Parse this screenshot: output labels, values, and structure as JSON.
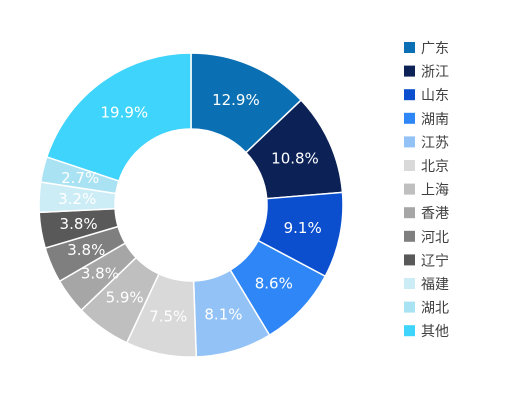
{
  "chart_data": {
    "type": "pie",
    "variant": "donut",
    "title": "",
    "legend_position": "right",
    "slices": [
      {
        "label": "广东",
        "value": 12.9,
        "display": "12.9%",
        "color": "#0a70b3",
        "label_color": "#ffffff"
      },
      {
        "label": "浙江",
        "value": 10.8,
        "display": "10.8%",
        "color": "#0c2257",
        "label_color": "#ffffff"
      },
      {
        "label": "山东",
        "value": 9.1,
        "display": "9.1%",
        "color": "#0b4fcf",
        "label_color": "#ffffff"
      },
      {
        "label": "湖南",
        "value": 8.6,
        "display": "8.6%",
        "color": "#2f86f6",
        "label_color": "#ffffff"
      },
      {
        "label": "江苏",
        "value": 8.1,
        "display": "8.1%",
        "color": "#93c2f7",
        "label_color": "#ffffff"
      },
      {
        "label": "北京",
        "value": 7.5,
        "display": "7.5%",
        "color": "#d9d9d9",
        "label_color": "#ffffff"
      },
      {
        "label": "上海",
        "value": 5.9,
        "display": "5.9%",
        "color": "#bfbfbf",
        "label_color": "#ffffff"
      },
      {
        "label": "香港",
        "value": 3.8,
        "display": "3.8%",
        "color": "#a6a6a6",
        "label_color": "#ffffff"
      },
      {
        "label": "河北",
        "value": 3.8,
        "display": "3.8%",
        "color": "#7f7f7f",
        "label_color": "#ffffff"
      },
      {
        "label": "辽宁",
        "value": 3.8,
        "display": "3.8%",
        "color": "#595959",
        "label_color": "#ffffff"
      },
      {
        "label": "福建",
        "value": 3.2,
        "display": "3.2%",
        "color": "#cdedf6",
        "label_color": "#ffffff"
      },
      {
        "label": "湖北",
        "value": 2.7,
        "display": "2.7%",
        "color": "#a9e2f3",
        "label_color": "#ffffff"
      },
      {
        "label": "其他",
        "value": 19.9,
        "display": "19.9%",
        "color": "#3fd4fb",
        "label_color": "#ffffff"
      }
    ]
  }
}
